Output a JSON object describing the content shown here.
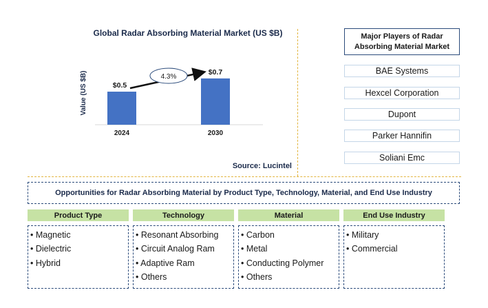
{
  "chart_data": {
    "type": "bar",
    "title": "Global Radar Absorbing Material Market (US $B)",
    "categories": [
      "2024",
      "2030"
    ],
    "values": [
      0.5,
      0.7
    ],
    "value_labels": [
      "$0.5",
      "$0.7"
    ],
    "ylabel": "Value (US $B)",
    "xlabel": "",
    "ylim": [
      0,
      0.99
    ],
    "grid": false,
    "bar_color": "#4472c4",
    "growth_annotation": "4.3%"
  },
  "source": "Source: Lucintel",
  "players": {
    "title": "Major Players of Radar Absorbing Material Market",
    "items": [
      "BAE Systems",
      "Hexcel Corporation",
      "Dupont",
      "Parker Hannifin",
      "Soliani Emc"
    ]
  },
  "opportunities": {
    "title": "Opportunities for Radar Absorbing Material by Product Type, Technology, Material, and End Use Industry",
    "categories": [
      {
        "header": "Product Type",
        "items": [
          "• Magnetic",
          "• Dielectric",
          "• Hybrid"
        ]
      },
      {
        "header": "Technology",
        "items": [
          "• Resonant Absorbing",
          "• Circuit Analog Ram",
          "• Adaptive Ram",
          "• Others"
        ]
      },
      {
        "header": "Material",
        "items": [
          "• Carbon",
          "• Metal",
          "• Conducting Polymer",
          "• Others"
        ]
      },
      {
        "header": "End Use Industry",
        "items": [
          "• Military",
          "• Commercial"
        ]
      }
    ]
  },
  "colors": {
    "accent_green": "#c6e2a4",
    "border_navy": "#2a4a7a",
    "divider_gold": "#e2b43c"
  }
}
